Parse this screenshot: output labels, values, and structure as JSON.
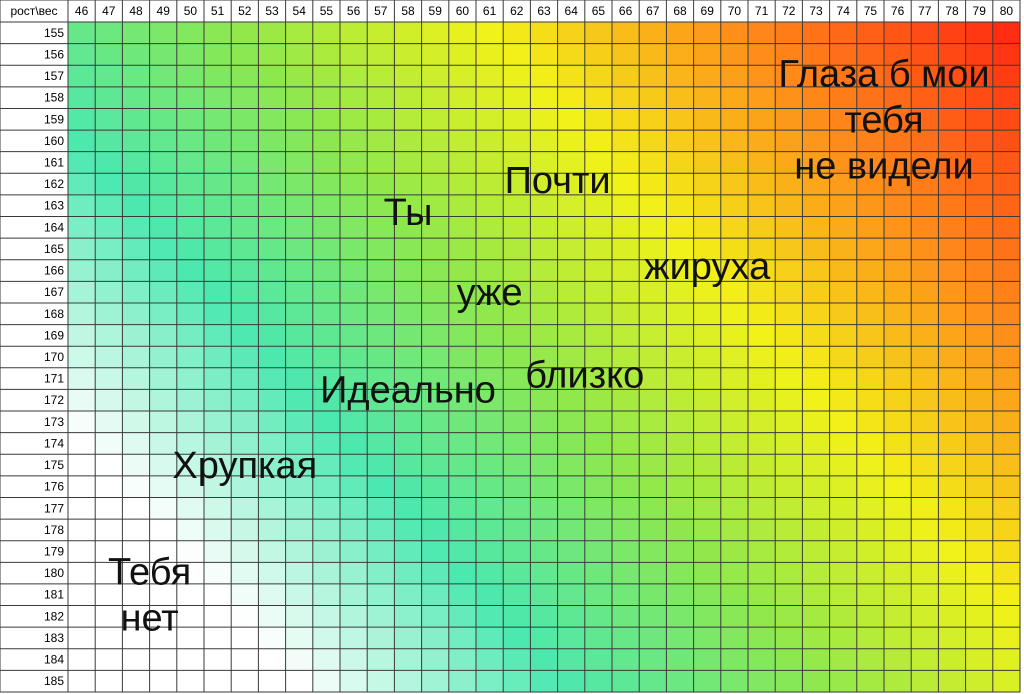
{
  "chart_data": {
    "type": "heatmap",
    "corner_label": "рост\\вес",
    "x": [
      46,
      47,
      48,
      49,
      50,
      51,
      52,
      53,
      54,
      55,
      56,
      57,
      58,
      59,
      60,
      61,
      62,
      63,
      64,
      65,
      66,
      67,
      68,
      69,
      70,
      71,
      72,
      73,
      74,
      75,
      76,
      77,
      78,
      79,
      80
    ],
    "y": [
      155,
      156,
      157,
      158,
      159,
      160,
      161,
      162,
      163,
      164,
      165,
      166,
      167,
      168,
      169,
      170,
      171,
      172,
      173,
      174,
      175,
      176,
      177,
      178,
      179,
      180,
      181,
      182,
      183,
      184,
      185
    ],
    "grid": true,
    "palette": [
      "#ffffff",
      "#4be8b0",
      "#8ee84d",
      "#f2f218",
      "#ff8a1a",
      "#ff2e12"
    ],
    "annotations": [
      {
        "lines": [
          "Глаза б мои",
          "тебя",
          "не видели"
        ],
        "x": 75.5,
        "y": 159
      },
      {
        "lines": [
          "Почти"
        ],
        "x": 63.5,
        "y": 161.8
      },
      {
        "lines": [
          "жируха"
        ],
        "x": 69,
        "y": 165.8
      },
      {
        "lines": [
          "Ты"
        ],
        "x": 58,
        "y": 163.3
      },
      {
        "lines": [
          "уже"
        ],
        "x": 61,
        "y": 167
      },
      {
        "lines": [
          "близко"
        ],
        "x": 64.5,
        "y": 170.8
      },
      {
        "lines": [
          "Идеально"
        ],
        "x": 58,
        "y": 171.5
      },
      {
        "lines": [
          "Хрупкая"
        ],
        "x": 52,
        "y": 175
      },
      {
        "lines": [
          "Тебя",
          "нет"
        ],
        "x": 48.5,
        "y": 181
      }
    ]
  }
}
